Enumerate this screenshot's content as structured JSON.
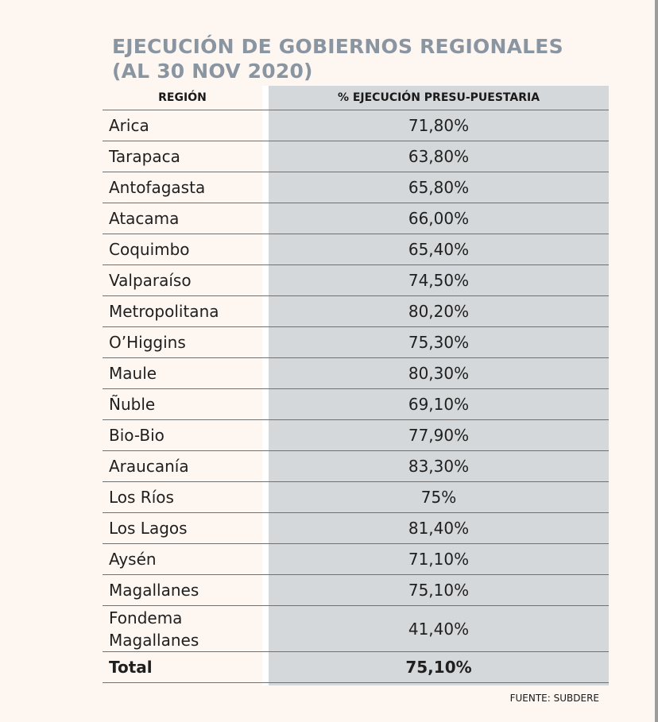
{
  "title": {
    "line1": "EJECUCIÓN DE GOBIERNOS REGIONALES",
    "line2": "(AL 30 NOV 2020)"
  },
  "chart_data": {
    "type": "table",
    "columns": [
      "REGIÓN",
      "% EJECUCIÓN PRESU-PUESTARIA"
    ],
    "rows": [
      {
        "region": "Arica",
        "value": "71,80%"
      },
      {
        "region": "Tarapaca",
        "value": "63,80%"
      },
      {
        "region": "Antofagasta",
        "value": "65,80%"
      },
      {
        "region": "Atacama",
        "value": "66,00%"
      },
      {
        "region": "Coquimbo",
        "value": "65,40%"
      },
      {
        "region": "Valparaíso",
        "value": "74,50%"
      },
      {
        "region": "Metropolitana",
        "value": "80,20%"
      },
      {
        "region": "O’Higgins",
        "value": "75,30%"
      },
      {
        "region": "Maule",
        "value": "80,30%"
      },
      {
        "region": "Ñuble",
        "value": "69,10%"
      },
      {
        "region": "Bio-Bio",
        "value": "77,90%"
      },
      {
        "region": "Araucanía",
        "value": "83,30%"
      },
      {
        "region": "Los Ríos",
        "value": "75%"
      },
      {
        "region": "Los Lagos",
        "value": "81,40%"
      },
      {
        "region": "Aysén",
        "value": "71,10%"
      },
      {
        "region": "Magallanes",
        "value": "75,10%"
      },
      {
        "region": "Fondema\nMagallanes",
        "value": "41,40%"
      }
    ],
    "total": {
      "region": "Total",
      "value": "75,10%"
    }
  },
  "source": "FUENTE: SUBDERE",
  "colors": {
    "background": "#fdf6f1",
    "title": "#8a95a2",
    "value_column": "#d5d8da",
    "rule": "#707070"
  }
}
